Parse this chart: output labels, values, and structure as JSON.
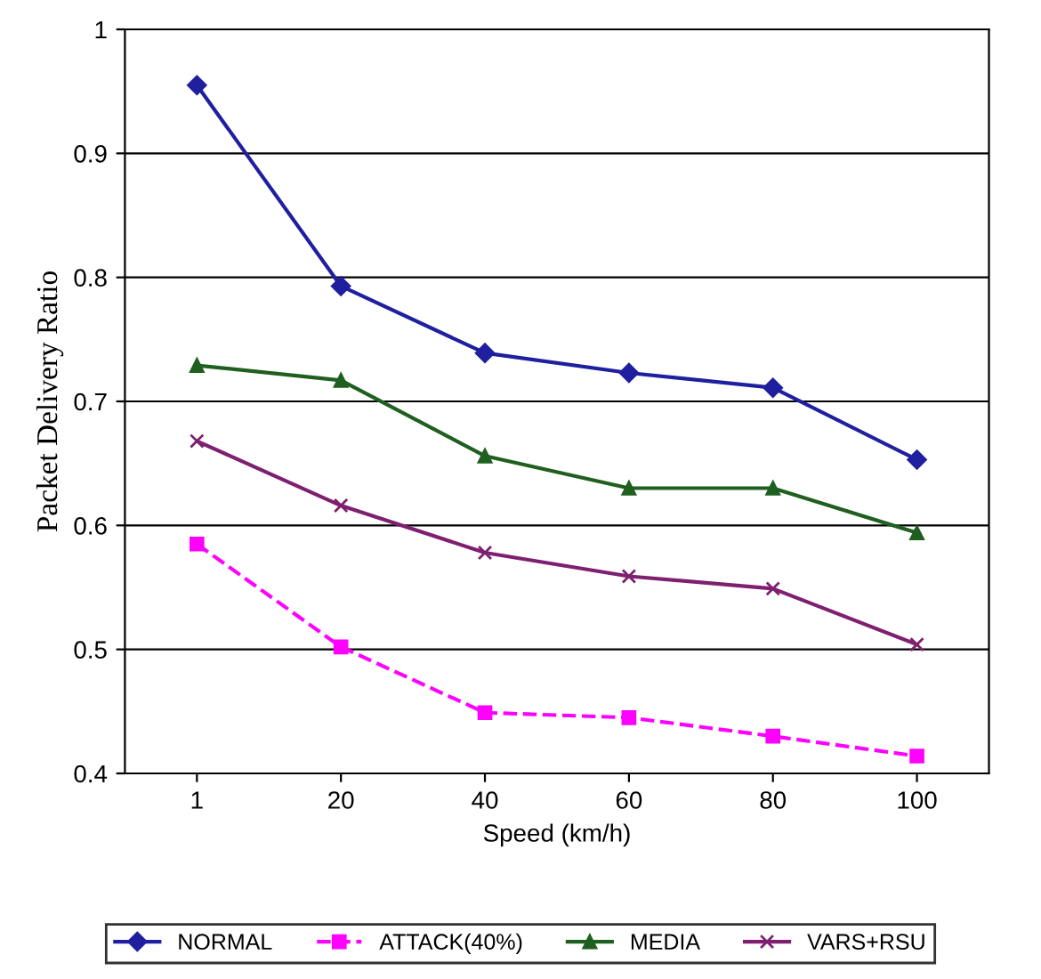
{
  "chart_data": {
    "type": "line",
    "xlabel": "Speed (km/h)",
    "ylabel": "Packet Delivery Ratio",
    "categories": [
      "1",
      "20",
      "40",
      "60",
      "80",
      "100"
    ],
    "series": [
      {
        "name": "NORMAL",
        "color": "#1f1f9f",
        "marker": "diamond",
        "line_style": "solid",
        "values": [
          0.955,
          0.793,
          0.739,
          0.723,
          0.711,
          0.653
        ]
      },
      {
        "name": "ATTACK(40%)",
        "color": "#ff00ff",
        "marker": "square",
        "line_style": "dashed",
        "values": [
          0.585,
          0.502,
          0.449,
          0.445,
          0.43,
          0.414
        ]
      },
      {
        "name": "MEDIA",
        "color": "#1f5f1f",
        "marker": "triangle",
        "line_style": "solid",
        "values": [
          0.729,
          0.717,
          0.656,
          0.63,
          0.63,
          0.594
        ]
      },
      {
        "name": "VARS+RSU",
        "color": "#7f1f6f",
        "marker": "cross",
        "line_style": "solid",
        "values": [
          0.668,
          0.616,
          0.578,
          0.559,
          0.549,
          0.504
        ]
      }
    ],
    "ylim": [
      0.4,
      1
    ],
    "yticks": [
      0.4,
      0.5,
      0.6,
      0.7,
      0.8,
      0.9,
      1
    ],
    "grid": "y",
    "legend": "bottom"
  }
}
